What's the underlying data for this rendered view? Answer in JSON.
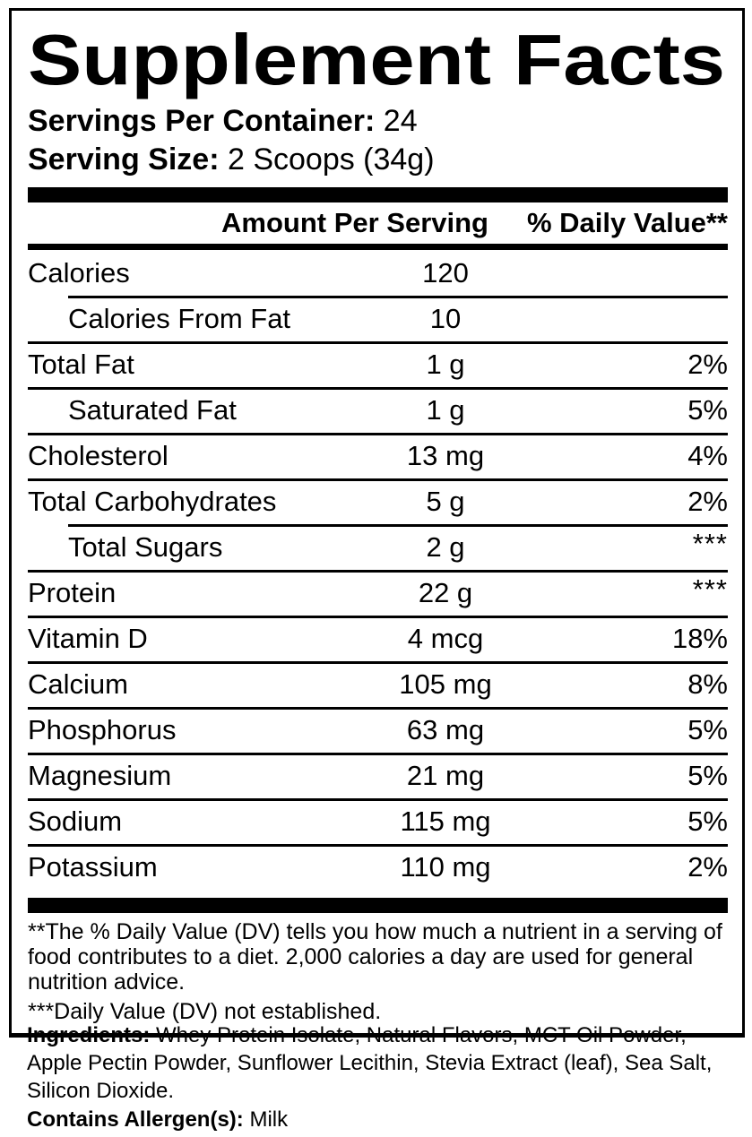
{
  "panel": {
    "title": "Supplement Facts",
    "servings": {
      "label": "Servings Per Container:",
      "value": " 24"
    },
    "serving_size": {
      "label": "Serving Size:",
      "value": " 2 Scoops (34g)"
    },
    "columns": {
      "amount": "Amount Per Serving",
      "dv": "% Daily Value**"
    },
    "rows": [
      {
        "name": "Calories",
        "amount": "120",
        "dv": "",
        "indent": false,
        "divider": "none"
      },
      {
        "name": "Calories From Fat",
        "amount": "10",
        "dv": "",
        "indent": true,
        "divider": "indent"
      },
      {
        "name": "Total Fat",
        "amount": "1 g",
        "dv": "2%",
        "indent": false,
        "divider": "full"
      },
      {
        "name": "Saturated Fat",
        "amount": "1 g",
        "dv": "5%",
        "indent": true,
        "divider": "full"
      },
      {
        "name": "Cholesterol",
        "amount": "13 mg",
        "dv": "4%",
        "indent": false,
        "divider": "full"
      },
      {
        "name": "Total Carbohydrates",
        "amount": "5 g",
        "dv": "2%",
        "indent": false,
        "divider": "full"
      },
      {
        "name": "Total Sugars",
        "amount": "2 g",
        "dv": "***",
        "indent": true,
        "divider": "indent"
      },
      {
        "name": "Protein",
        "amount": "22 g",
        "dv": "***",
        "indent": false,
        "divider": "full"
      },
      {
        "name": "Vitamin D",
        "amount": "4 mcg",
        "dv": "18%",
        "indent": false,
        "divider": "full"
      },
      {
        "name": "Calcium",
        "amount": "105 mg",
        "dv": "8%",
        "indent": false,
        "divider": "full"
      },
      {
        "name": "Phosphorus",
        "amount": "63 mg",
        "dv": "5%",
        "indent": false,
        "divider": "full"
      },
      {
        "name": "Magnesium",
        "amount": "21 mg",
        "dv": "5%",
        "indent": false,
        "divider": "full"
      },
      {
        "name": "Sodium",
        "amount": "115 mg",
        "dv": "5%",
        "indent": false,
        "divider": "full"
      },
      {
        "name": "Potassium",
        "amount": "110 mg",
        "dv": "2%",
        "indent": false,
        "divider": "full"
      }
    ],
    "footnotes": {
      "dv_note": "**The % Daily Value (DV) tells you how much a nutrient in a serving of food contributes to a diet. 2,000 calories a day are used for general nutrition advice.",
      "not_established": "***Daily Value (DV) not established."
    }
  },
  "ingredients": {
    "label": "Ingredients:",
    "text": " Whey Protein Isolate, Natural Flavors, MCT Oil Powder, Apple Pectin Powder, Sunflower Lecithin, Stevia Extract (leaf), Sea Salt, Silicon Dioxide.",
    "allergen_label": "Contains Allergen(s):",
    "allergen_value": " Milk"
  },
  "colors": {
    "text": "#000000",
    "background": "#ffffff"
  }
}
